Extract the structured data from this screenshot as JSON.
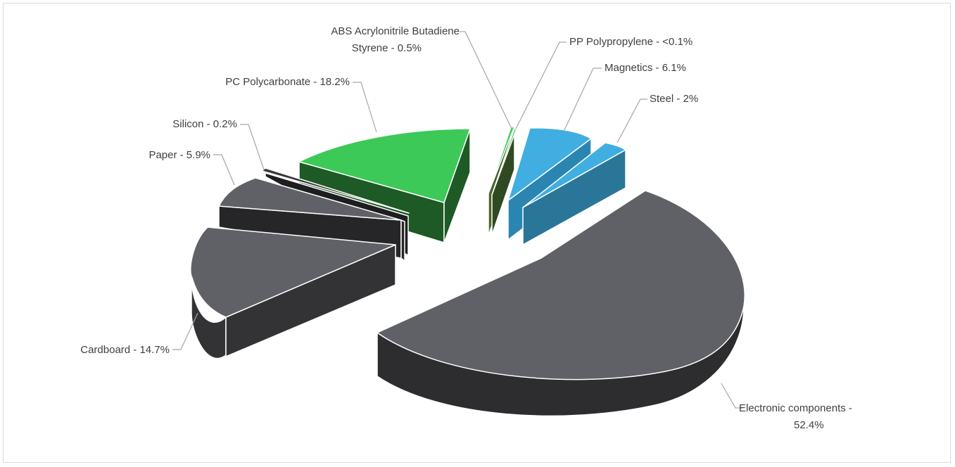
{
  "chart_data": {
    "type": "pie",
    "title": "",
    "legend": "none",
    "slices": [
      {
        "label": "Electronic components - 52.4%",
        "value": 52.4,
        "color": "#606166",
        "dark": "#2d2d30"
      },
      {
        "label": "Cardboard - 14.7%",
        "value": 14.7,
        "color": "#606166",
        "dark": "#333336"
      },
      {
        "label": "Paper - 5.9%",
        "value": 5.9,
        "color": "#606166",
        "dark": "#262628"
      },
      {
        "label": "Silicon - 0.2%",
        "value": 0.2,
        "color": "#3a3a3c",
        "dark": "#1e1e20"
      },
      {
        "label": "PC Polycarbonate - 18.2%",
        "value": 18.2,
        "color": "#3dc957",
        "dark": "#1d5a25"
      },
      {
        "label": "ABS Acrylonitrile Butadiene Styrene - 0.5%",
        "value": 0.5,
        "color": "#3dc957",
        "dark": "#4a6428"
      },
      {
        "label": "PP Polypropylene - <0.1%",
        "value": 0.1,
        "color": "#3dc957",
        "dark": "#2f4a22"
      },
      {
        "label": "Magnetics - 6.1%",
        "value": 6.1,
        "color": "#40aee0",
        "dark": "#2a86b0"
      },
      {
        "label": "Steel - 2%",
        "value": 2.0,
        "color": "#40aee0",
        "dark": "#2a7699"
      }
    ]
  }
}
